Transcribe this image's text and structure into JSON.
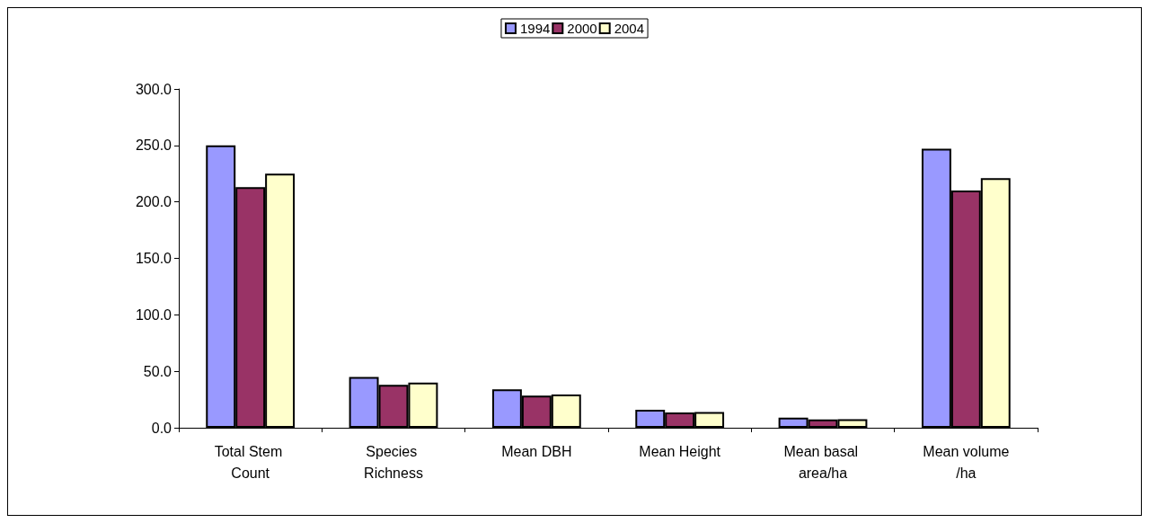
{
  "chart_data": {
    "type": "bar",
    "categories": [
      "Total Stem Count",
      "Species Richness",
      "Mean DBH",
      "Mean Height",
      "Mean basal area/ha",
      "Mean volume/ha"
    ],
    "series": [
      {
        "name": "1994",
        "color": "#9999ff",
        "values": [
          250,
          45,
          34,
          16,
          9,
          247
        ]
      },
      {
        "name": "2000",
        "color": "#993366",
        "values": [
          213,
          38,
          28.5,
          13.5,
          7.3,
          210
        ]
      },
      {
        "name": "2004",
        "color": "#ffffcc",
        "values": [
          225,
          40,
          29.5,
          14,
          7.6,
          221
        ]
      }
    ],
    "ylim": [
      0,
      300
    ],
    "yticks": [
      {
        "value": 0,
        "label": "0.0"
      },
      {
        "value": 50,
        "label": "50.0"
      },
      {
        "value": 100,
        "label": "100.0"
      },
      {
        "value": 150,
        "label": "150.0"
      },
      {
        "value": 200,
        "label": "200.0"
      },
      {
        "value": 250,
        "label": "250.0"
      },
      {
        "value": 300,
        "label": "300.0"
      }
    ],
    "grid": false,
    "legend": "top"
  }
}
